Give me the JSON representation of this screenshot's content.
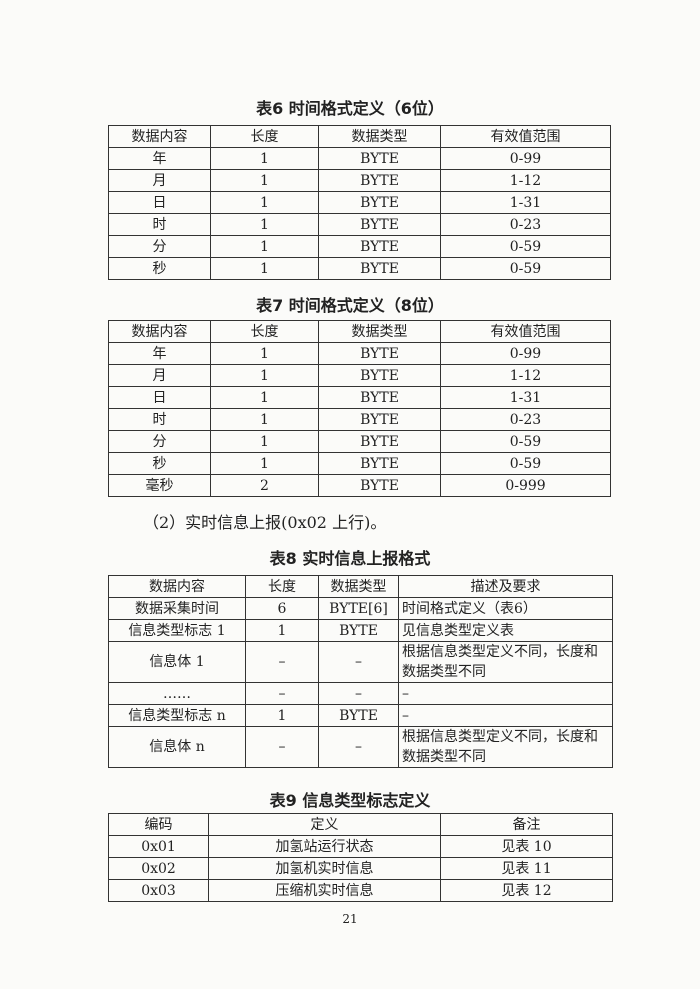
{
  "table6": {
    "title": "表6 时间格式定义（6位）",
    "headers": [
      "数据内容",
      "长度",
      "数据类型",
      "有效值范围"
    ],
    "rows": [
      [
        "年",
        "1",
        "BYTE",
        "0-99"
      ],
      [
        "月",
        "1",
        "BYTE",
        "1-12"
      ],
      [
        "日",
        "1",
        "BYTE",
        "1-31"
      ],
      [
        "时",
        "1",
        "BYTE",
        "0-23"
      ],
      [
        "分",
        "1",
        "BYTE",
        "0-59"
      ],
      [
        "秒",
        "1",
        "BYTE",
        "0-59"
      ]
    ]
  },
  "table7": {
    "title": "表7 时间格式定义（8位）",
    "headers": [
      "数据内容",
      "长度",
      "数据类型",
      "有效值范围"
    ],
    "rows": [
      [
        "年",
        "1",
        "BYTE",
        "0-99"
      ],
      [
        "月",
        "1",
        "BYTE",
        "1-12"
      ],
      [
        "日",
        "1",
        "BYTE",
        "1-31"
      ],
      [
        "时",
        "1",
        "BYTE",
        "0-23"
      ],
      [
        "分",
        "1",
        "BYTE",
        "0-59"
      ],
      [
        "秒",
        "1",
        "BYTE",
        "0-59"
      ],
      [
        "毫秒",
        "2",
        "BYTE",
        "0-999"
      ]
    ]
  },
  "paragraph": "（2）实时信息上报(0x02 上行)。",
  "table8": {
    "title": "表8 实时信息上报格式",
    "headers": [
      "数据内容",
      "长度",
      "数据类型",
      "描述及要求"
    ],
    "rows": [
      [
        "数据采集时间",
        "6",
        "BYTE[6]",
        "时间格式定义（表6）"
      ],
      [
        "信息类型标志 1",
        "1",
        "BYTE",
        "见信息类型定义表"
      ],
      [
        "信息体 1",
        "–",
        "–",
        "根据信息类型定义不同，长度和数据类型不同"
      ],
      [
        "……",
        "–",
        "–",
        "–"
      ],
      [
        "信息类型标志 n",
        "1",
        "BYTE",
        "–"
      ],
      [
        "信息体 n",
        "–",
        "–",
        "根据信息类型定义不同，长度和数据类型不同"
      ]
    ]
  },
  "table9": {
    "title": "表9 信息类型标志定义",
    "headers": [
      "编码",
      "定义",
      "备注"
    ],
    "rows": [
      [
        "0x01",
        "加氢站运行状态",
        "见表 10"
      ],
      [
        "0x02",
        "加氢机实时信息",
        "见表 11"
      ],
      [
        "0x03",
        "压缩机实时信息",
        "见表 12"
      ]
    ]
  },
  "page_number": "21"
}
